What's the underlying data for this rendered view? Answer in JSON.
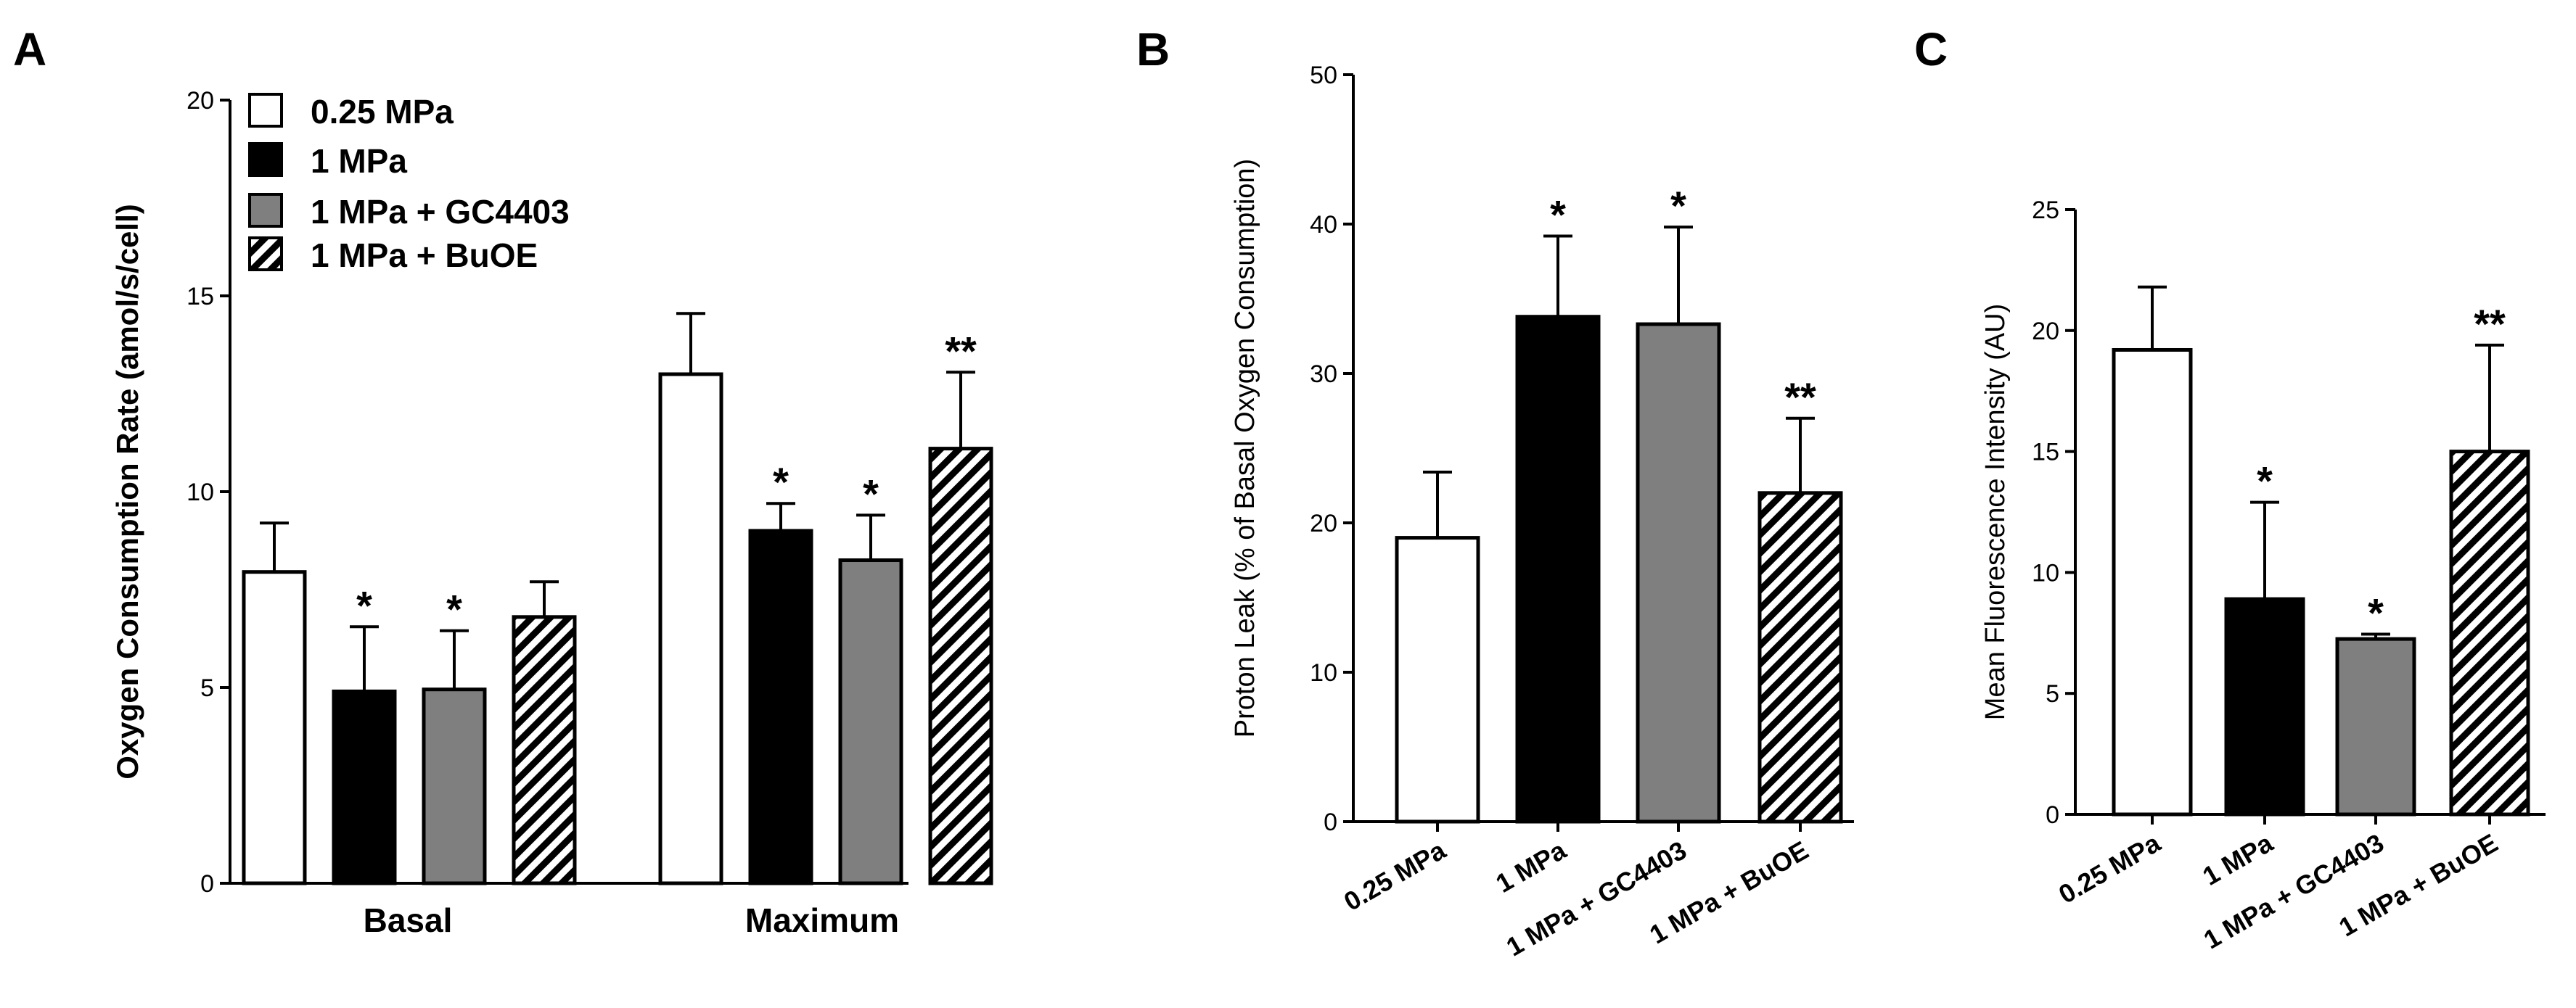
{
  "colors": {
    "white": "#ffffff",
    "black": "#000000",
    "gray": "#7f7f7f",
    "hatch": "#000000"
  },
  "chart_data": [
    {
      "type": "bar",
      "panel": "A",
      "ylabel": "Oxygen Consumption  Rate  (amol/s/cell)",
      "ylim": [
        0,
        20
      ],
      "yticks": [
        "0",
        "5",
        "10",
        "15",
        "20"
      ],
      "categories": [
        "Basal",
        "Maximum"
      ],
      "legend": [
        "0.25 MPa",
        "1 MPa",
        "1 MPa + GC4403",
        "1 MPa + BuOE"
      ],
      "series": [
        {
          "name": "0.25 MPa",
          "fill": "white",
          "values": [
            7.95,
            13.0
          ],
          "errors": [
            1.25,
            1.55
          ],
          "sig": [
            "",
            ""
          ]
        },
        {
          "name": "1 MPa",
          "fill": "black",
          "values": [
            4.9,
            9.0
          ],
          "errors": [
            1.65,
            0.7
          ],
          "sig": [
            "*",
            "*"
          ]
        },
        {
          "name": "1 MPa + GC4403",
          "fill": "gray",
          "values": [
            4.95,
            8.25
          ],
          "errors": [
            1.5,
            1.15
          ],
          "sig": [
            "*",
            "*"
          ]
        },
        {
          "name": "1 MPa + BuOE",
          "fill": "hatch",
          "values": [
            6.8,
            11.1
          ],
          "errors": [
            0.9,
            1.95
          ],
          "sig": [
            "",
            "**"
          ]
        }
      ]
    },
    {
      "type": "bar",
      "panel": "B",
      "ylabel": "Proton  Leak (% of Basal Oxygen Consumption)",
      "ylim": [
        0,
        50
      ],
      "yticks": [
        "0",
        "10",
        "20",
        "30",
        "40",
        "50"
      ],
      "categories": [
        "0.25 MPa",
        "1 MPa",
        "1 MPa + GC4403",
        "1 MPa + BuOE"
      ],
      "fills": [
        "white",
        "black",
        "gray",
        "hatch"
      ],
      "values": [
        19.0,
        33.8,
        33.3,
        22.0
      ],
      "errors": [
        4.4,
        5.4,
        6.5,
        5.0
      ],
      "sig": [
        "",
        "*",
        "*",
        "**"
      ]
    },
    {
      "type": "bar",
      "panel": "C",
      "ylabel": "Mean Fluorescence  Intensity (AU)",
      "ylim": [
        0,
        25
      ],
      "yticks": [
        "0",
        "5",
        "10",
        "15",
        "20",
        "25"
      ],
      "categories": [
        "0.25 MPa",
        "1 MPa",
        "1 MPa + GC4403",
        "1 MPa + BuOE"
      ],
      "fills": [
        "white",
        "black",
        "gray",
        "hatch"
      ],
      "values": [
        19.2,
        8.9,
        7.25,
        15.0
      ],
      "errors": [
        2.6,
        4.0,
        0.2,
        4.4
      ],
      "sig": [
        "",
        "*",
        "*",
        "**"
      ]
    }
  ]
}
